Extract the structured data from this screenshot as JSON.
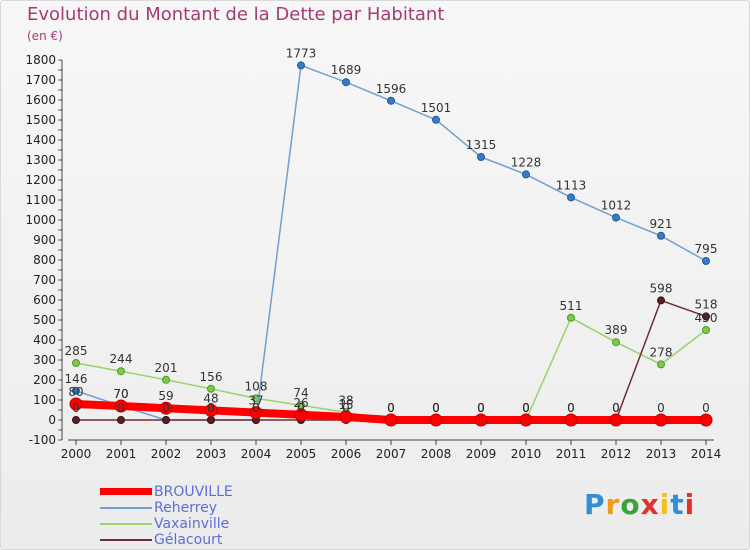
{
  "title": "Evolution du Montant de la Dette par Habitant",
  "unit_label": "(en €)",
  "brand": "Proxiti",
  "chart_data": {
    "type": "line",
    "title": "Evolution du Montant de la Dette par Habitant",
    "subtitle": "(en €)",
    "xlabel": "",
    "ylabel": "",
    "x": [
      "2000",
      "2001",
      "2002",
      "2003",
      "2004",
      "2005",
      "2006",
      "2007",
      "2008",
      "2009",
      "2010",
      "2011",
      "2012",
      "2013",
      "2014"
    ],
    "ylim": [
      -100,
      1800
    ],
    "yticks": [
      -100,
      0,
      100,
      200,
      300,
      400,
      500,
      600,
      700,
      800,
      900,
      1000,
      1100,
      1200,
      1300,
      1400,
      1500,
      1600,
      1700,
      1800
    ],
    "grid": false,
    "legend_position": "bottom-left",
    "series": [
      {
        "name": "BROUVILLE",
        "color": "#ff0000",
        "values": [
          80,
          70,
          59,
          48,
          37,
          26,
          15,
          0,
          0,
          0,
          0,
          0,
          0,
          0,
          0
        ],
        "labels": [
          "80",
          "70",
          "59",
          "48",
          "37",
          "26",
          "15",
          "0",
          "0",
          "0",
          "0",
          "0",
          "0",
          "0",
          "0"
        ]
      },
      {
        "name": "Reherrey",
        "color": "#6fa0d4",
        "values": [
          146,
          70,
          0,
          0,
          0,
          1773,
          1689,
          1596,
          1501,
          1315,
          1228,
          1113,
          1012,
          921,
          795
        ],
        "labels": [
          "146",
          "70",
          "0",
          "0",
          "0",
          "1773",
          "1689",
          "1596",
          "1501",
          "1315",
          "1228",
          "1113",
          "1012",
          "921",
          "795"
        ]
      },
      {
        "name": "Vaxainville",
        "color": "#9ad26b",
        "values": [
          285,
          244,
          201,
          156,
          108,
          74,
          38,
          0,
          0,
          0,
          0,
          511,
          389,
          278,
          450
        ],
        "labels": [
          "285",
          "244",
          "201",
          "156",
          "108",
          "74",
          "38",
          "0",
          "0",
          "0",
          "0",
          "511",
          "389",
          "278",
          "450"
        ]
      },
      {
        "name": "Gélacourt",
        "color": "#6b2e34",
        "values": [
          0,
          0,
          0,
          0,
          0,
          0,
          0,
          0,
          0,
          0,
          0,
          0,
          0,
          598,
          518
        ],
        "labels": [
          "0",
          "0",
          "0",
          "0",
          "0",
          "0",
          "0",
          "0",
          "0",
          "0",
          "0",
          "0",
          "0",
          "598",
          "518"
        ]
      }
    ]
  }
}
